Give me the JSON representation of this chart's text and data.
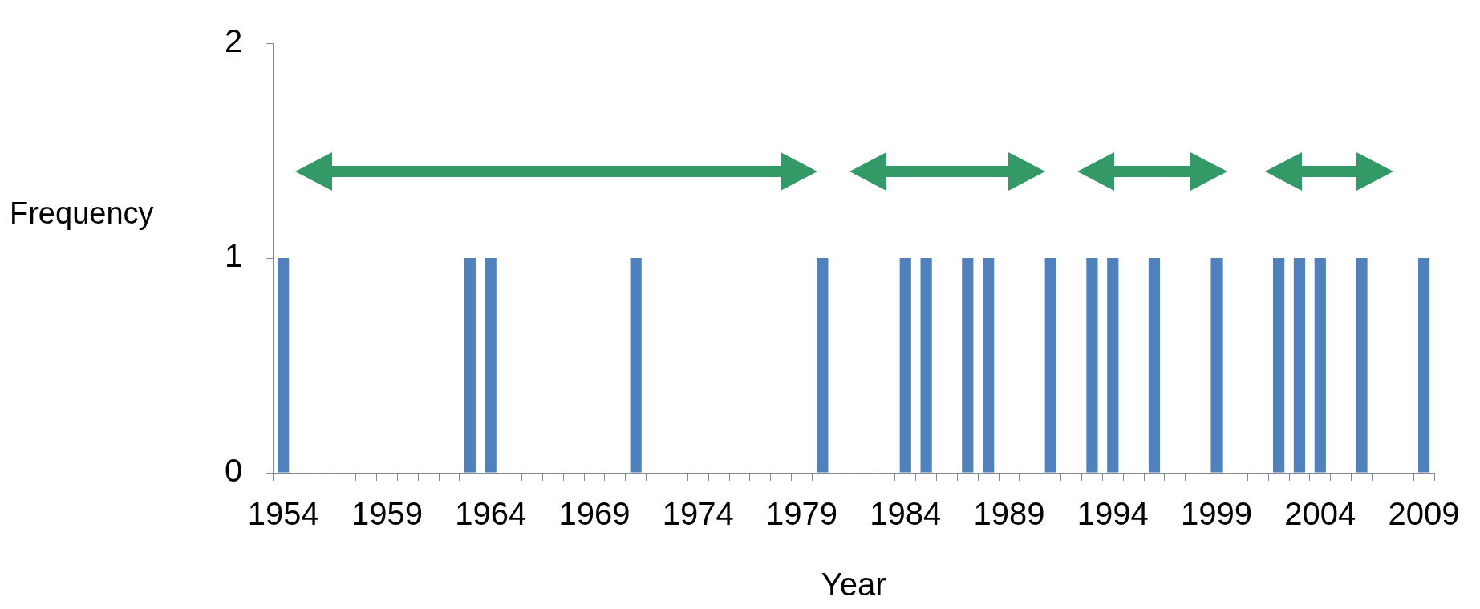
{
  "chart_data": {
    "type": "bar",
    "xlabel": "Year",
    "ylabel": "Frequency",
    "categories": [
      "1954",
      null,
      null,
      null,
      null,
      "1959",
      null,
      null,
      null,
      null,
      "1964",
      null,
      null,
      null,
      null,
      "1969",
      null,
      null,
      null,
      null,
      "1974",
      null,
      null,
      null,
      null,
      "1979",
      null,
      null,
      null,
      null,
      "1984",
      null,
      null,
      null,
      null,
      "1989",
      null,
      null,
      null,
      null,
      "1994",
      null,
      null,
      null,
      null,
      "1999",
      null,
      null,
      null,
      null,
      "2004",
      null,
      null,
      null,
      null,
      "2009"
    ],
    "values": [
      1,
      0,
      0,
      0,
      0,
      0,
      0,
      0,
      0,
      1,
      1,
      0,
      0,
      0,
      0,
      0,
      0,
      1,
      0,
      0,
      0,
      0,
      0,
      0,
      0,
      0,
      1,
      0,
      0,
      0,
      1,
      1,
      0,
      1,
      1,
      0,
      0,
      1,
      0,
      1,
      1,
      0,
      1,
      0,
      0,
      1,
      0,
      0,
      1,
      1,
      1,
      0,
      1,
      0,
      0,
      1
    ],
    "color": "#4f81bd",
    "ylim": [
      0,
      2
    ],
    "yticks": [
      0,
      1,
      2
    ],
    "grid": false,
    "legend": false
  }
}
